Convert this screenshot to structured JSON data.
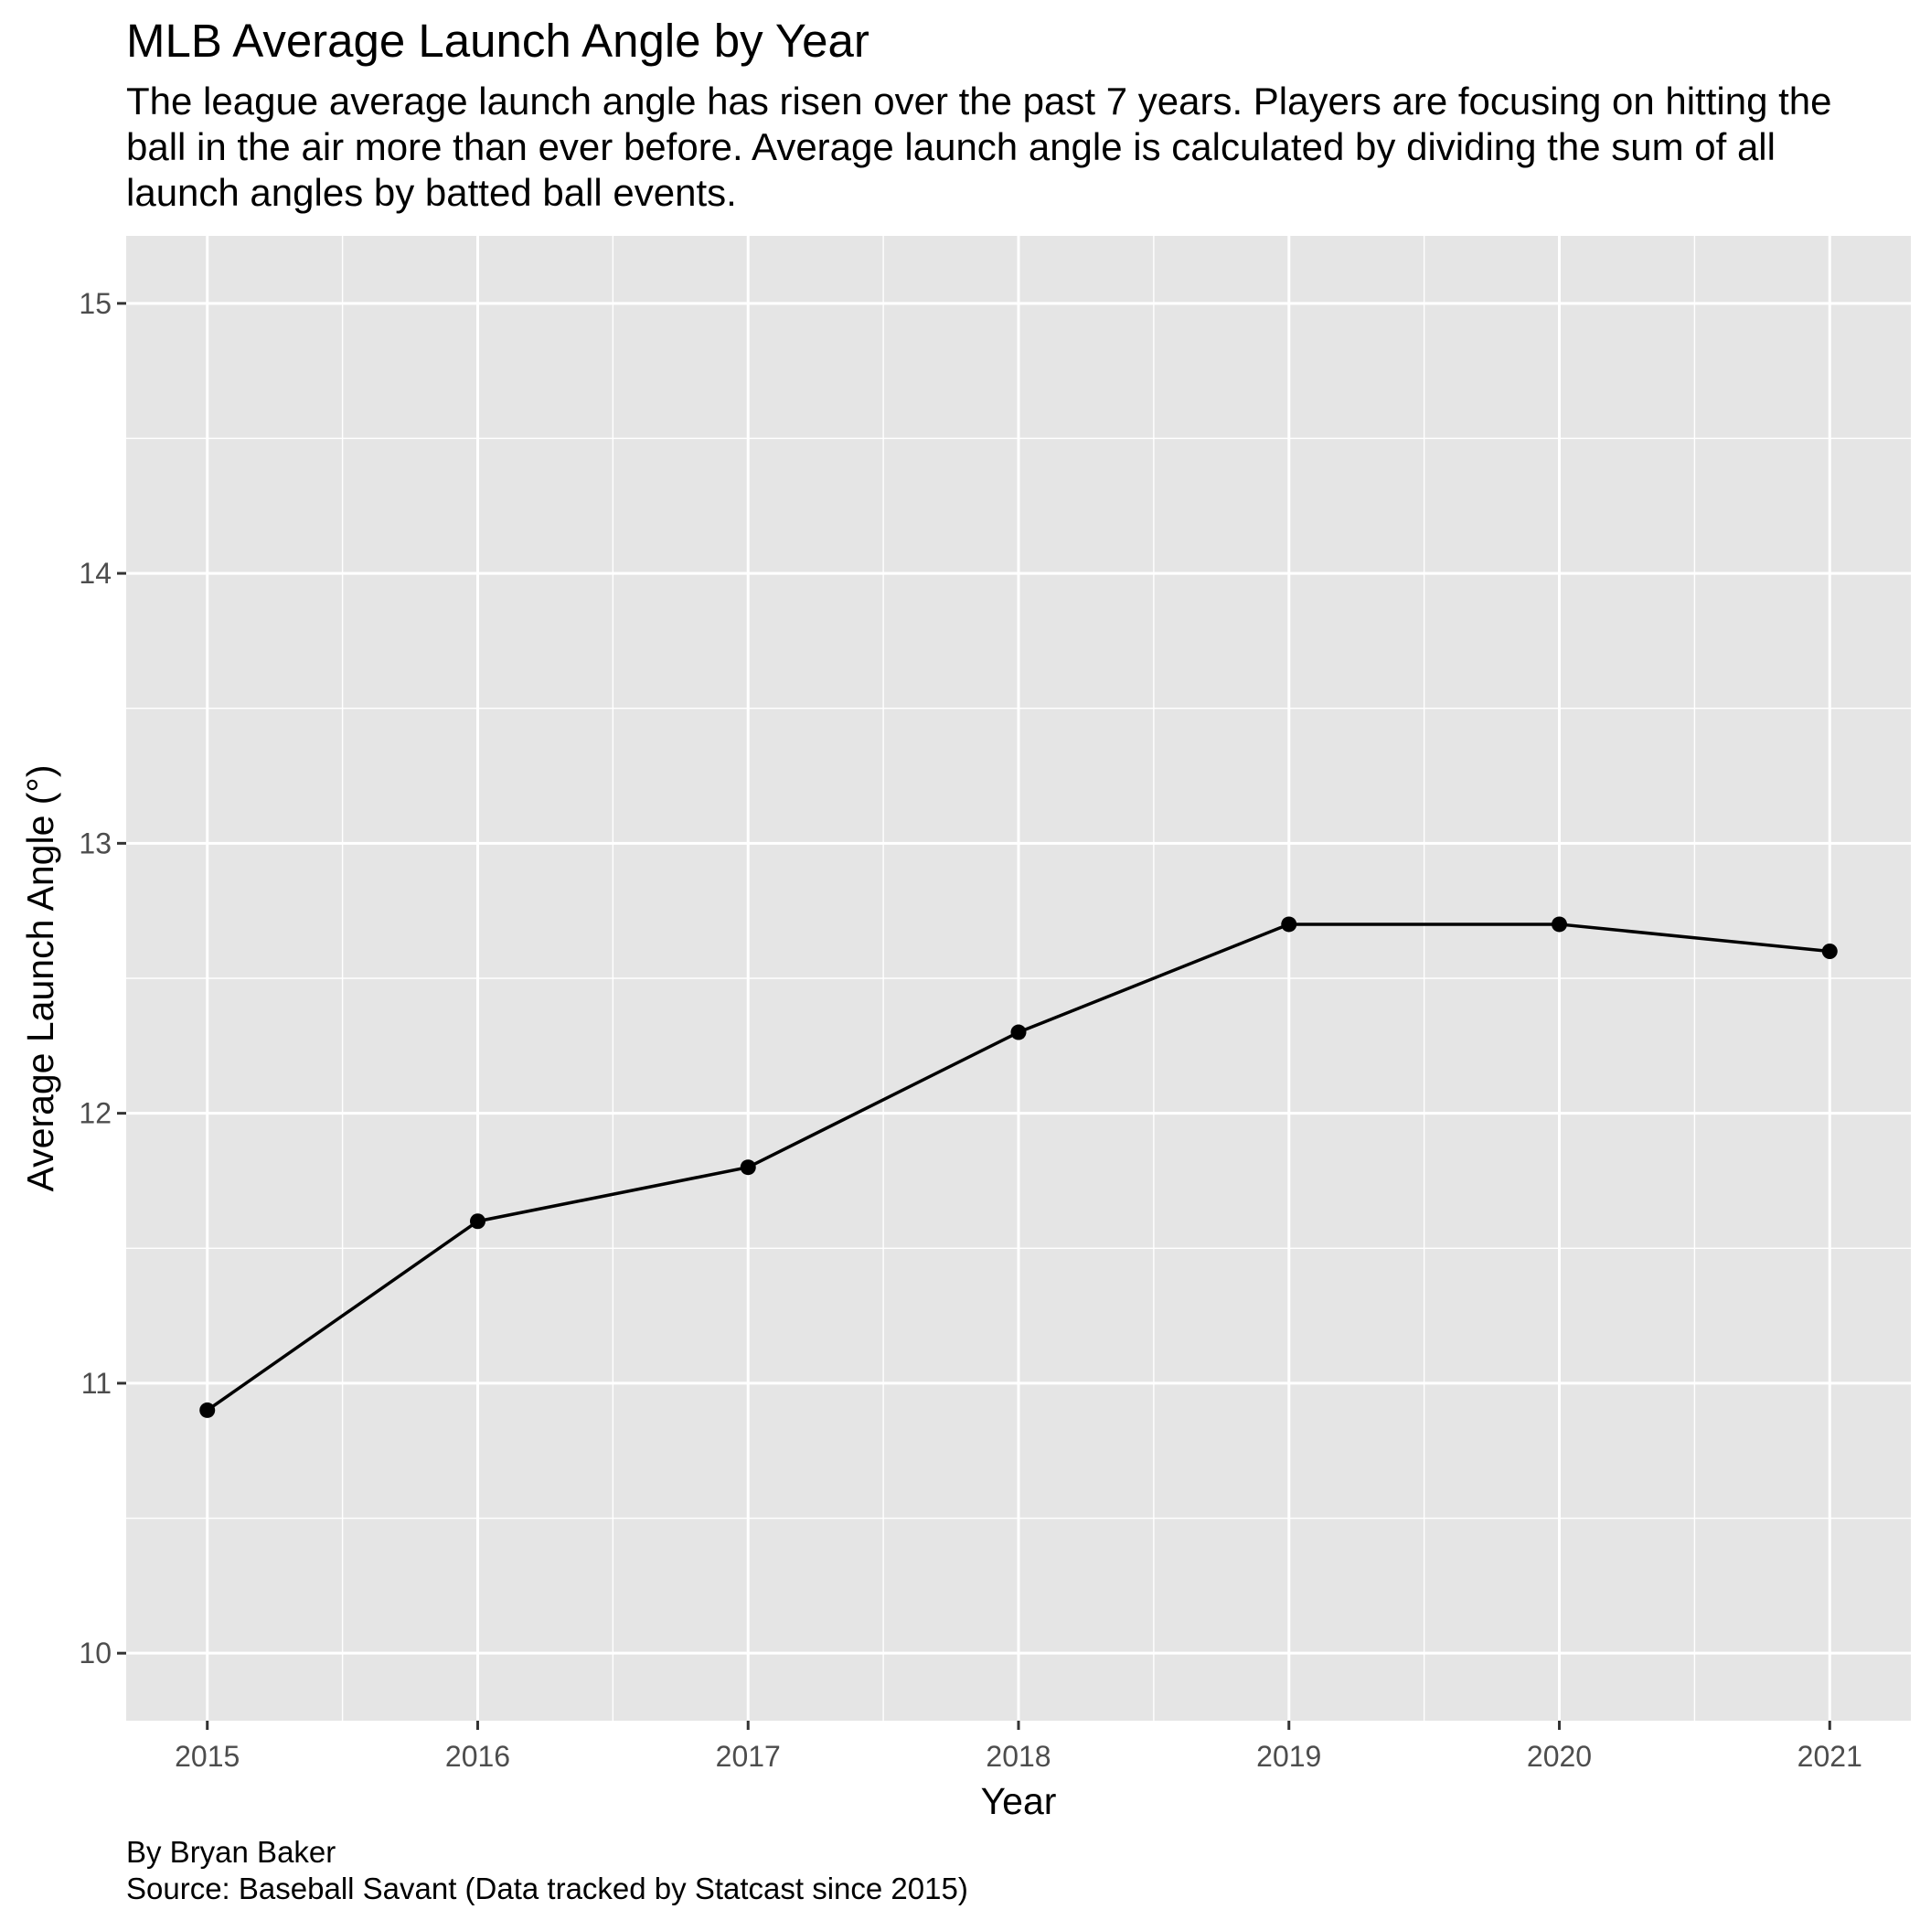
{
  "title": "MLB Average Launch Angle by Year",
  "subtitle": "The league average launch angle has risen over the past 7 years. Players are focusing on hitting the ball in the air more than ever before. Average launch angle is calculated by dividing the sum of all launch angles by batted ball events.",
  "caption": {
    "author": "By Bryan Baker",
    "source": "Source: Baseball Savant (Data tracked by Statcast since 2015)"
  },
  "colors": {
    "panel_background": "#e5e5e5",
    "grid": "#ffffff",
    "line": "#000000",
    "tick_text": "#4d4d4d"
  },
  "chart_data": {
    "type": "line",
    "title": "MLB Average Launch Angle by Year",
    "xlabel": "Year",
    "ylabel": "Average Launch Angle (°)",
    "x": [
      2015,
      2016,
      2017,
      2018,
      2019,
      2020,
      2021
    ],
    "series": [
      {
        "values": [
          10.9,
          11.6,
          11.8,
          12.3,
          12.7,
          12.7,
          12.6
        ]
      }
    ],
    "xlim": [
      2014.7,
      2021.3
    ],
    "ylim": [
      9.75,
      15.25
    ],
    "x_ticks": [
      "2015",
      "2016",
      "2017",
      "2018",
      "2019",
      "2020",
      "2021"
    ],
    "y_ticks": [
      "10",
      "11",
      "12",
      "13",
      "14",
      "15"
    ],
    "markers": true,
    "grid": true,
    "legend": "none"
  }
}
